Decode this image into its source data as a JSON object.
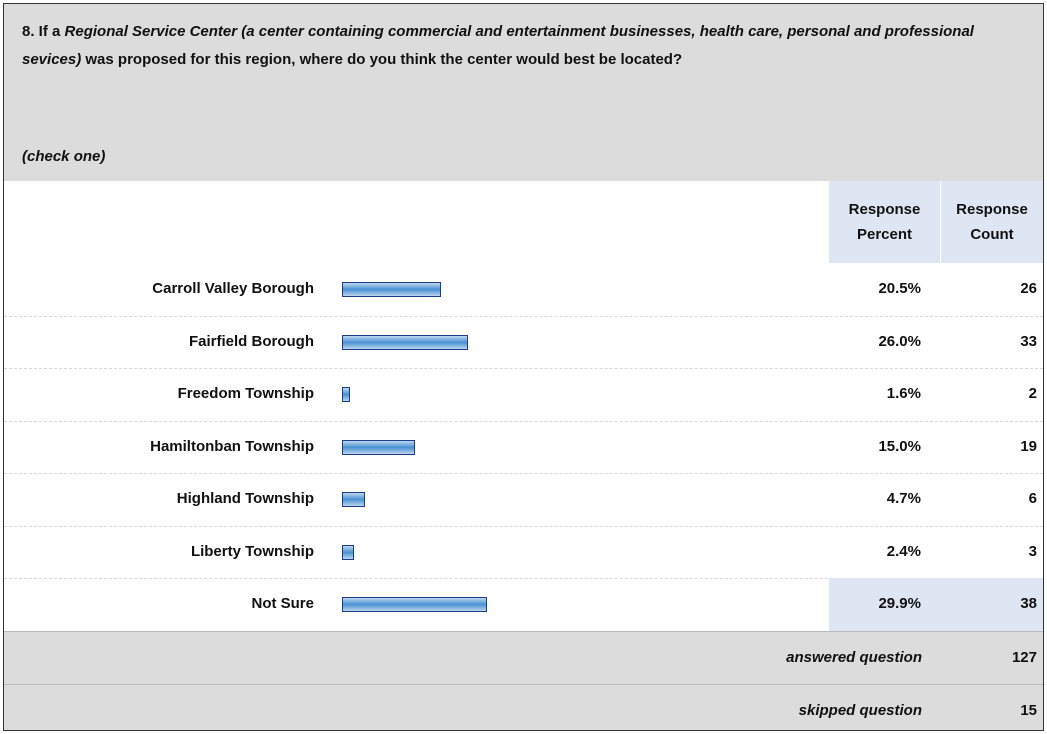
{
  "question": {
    "lead": "8. If a ",
    "emphasis": "Regional Service Center (a center containing commercial and entertainment businesses, health care, personal and professional sevices)",
    "rest": " was proposed for this region, where do you think the center would best be located?",
    "instruction": "(check one)"
  },
  "table": {
    "header": {
      "percent": "Response Percent",
      "count": "Response Count"
    },
    "rows": [
      {
        "label": "Carroll Valley Borough",
        "percent": 20.5,
        "percent_label": "20.5%",
        "count": 26
      },
      {
        "label": "Fairfield Borough",
        "percent": 26.0,
        "percent_label": "26.0%",
        "count": 33
      },
      {
        "label": "Freedom Township",
        "percent": 1.6,
        "percent_label": "1.6%",
        "count": 2
      },
      {
        "label": "Hamiltonban Township",
        "percent": 15.0,
        "percent_label": "15.0%",
        "count": 19
      },
      {
        "label": "Highland Township",
        "percent": 4.7,
        "percent_label": "4.7%",
        "count": 6
      },
      {
        "label": "Liberty Township",
        "percent": 2.4,
        "percent_label": "2.4%",
        "count": 3
      },
      {
        "label": "Not Sure",
        "percent": 29.9,
        "percent_label": "29.9%",
        "count": 38
      }
    ],
    "footer": [
      {
        "label": "answered question",
        "count": 127
      },
      {
        "label": "skipped question",
        "count": 15
      }
    ]
  }
}
